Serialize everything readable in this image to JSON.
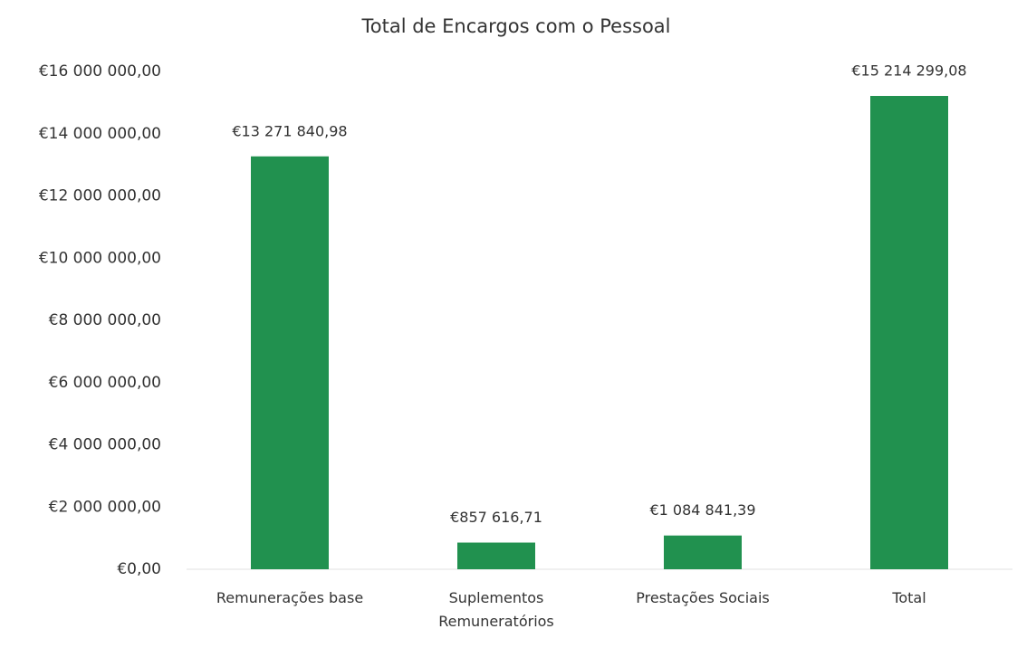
{
  "chart_data": {
    "type": "bar",
    "title": "Total de Encargos com o Pessoal",
    "categories": [
      "Remunerações base",
      "Suplementos Remuneratórios",
      "Prestações Sociais",
      "Total"
    ],
    "values": [
      13271840.98,
      857616.71,
      1084841.39,
      15214299.08
    ],
    "value_labels": [
      "€13 271 840,98",
      "€857 616,71",
      "€1 084 841,39",
      "€15 214 299,08"
    ],
    "color": "#21914f",
    "ylim": [
      0,
      16000000
    ],
    "yticks": [
      {
        "value": 0,
        "label": "€0,00"
      },
      {
        "value": 2000000,
        "label": "€2 000 000,00"
      },
      {
        "value": 4000000,
        "label": "€4 000 000,00"
      },
      {
        "value": 6000000,
        "label": "€6 000 000,00"
      },
      {
        "value": 8000000,
        "label": "€8 000 000,00"
      },
      {
        "value": 10000000,
        "label": "€10 000 000,00"
      },
      {
        "value": 12000000,
        "label": "€12 000 000,00"
      },
      {
        "value": 14000000,
        "label": "€14 000 000,00"
      },
      {
        "value": 16000000,
        "label": "€16 000 000,00"
      }
    ],
    "grid": false
  }
}
